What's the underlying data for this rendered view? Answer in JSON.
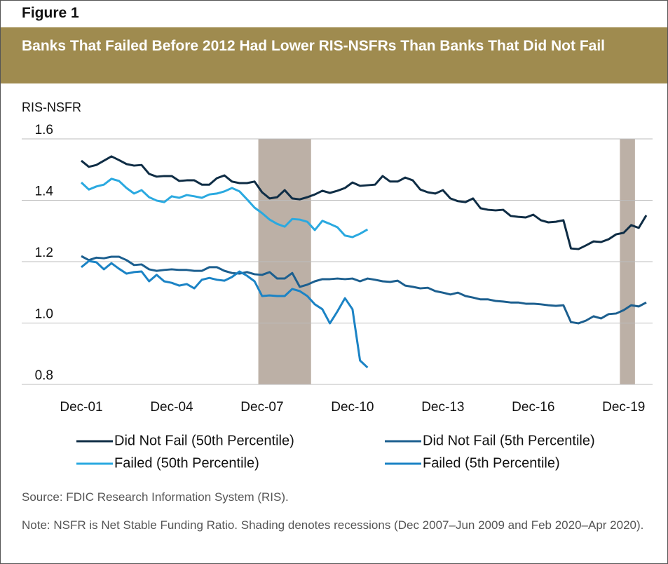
{
  "chart_data": {
    "type": "line",
    "figure_label": "Figure 1",
    "title": "Banks That Failed Before 2012 Had Lower RIS-NSFRs Than Banks That Did Not Fail",
    "y_label": "RIS-NSFR",
    "x": [
      "Dec-01",
      "Mar-02",
      "Jun-02",
      "Sep-02",
      "Dec-02",
      "Mar-03",
      "Jun-03",
      "Sep-03",
      "Dec-03",
      "Mar-04",
      "Jun-04",
      "Sep-04",
      "Dec-04",
      "Mar-05",
      "Jun-05",
      "Sep-05",
      "Dec-05",
      "Mar-06",
      "Jun-06",
      "Sep-06",
      "Dec-06",
      "Mar-07",
      "Jun-07",
      "Sep-07",
      "Dec-07",
      "Mar-08",
      "Jun-08",
      "Sep-08",
      "Dec-08",
      "Mar-09",
      "Jun-09",
      "Sep-09",
      "Dec-09",
      "Mar-10",
      "Jun-10",
      "Sep-10",
      "Dec-10",
      "Mar-11",
      "Jun-11",
      "Sep-11",
      "Dec-11",
      "Mar-12",
      "Jun-12",
      "Sep-12",
      "Dec-12",
      "Mar-13",
      "Jun-13",
      "Sep-13",
      "Dec-13",
      "Mar-14",
      "Jun-14",
      "Sep-14",
      "Dec-14",
      "Mar-15",
      "Jun-15",
      "Sep-15",
      "Dec-15",
      "Mar-16",
      "Jun-16",
      "Sep-16",
      "Dec-16",
      "Mar-17",
      "Jun-17",
      "Sep-17",
      "Dec-17",
      "Mar-18",
      "Jun-18",
      "Sep-18",
      "Dec-18",
      "Mar-19",
      "Jun-19",
      "Sep-19",
      "Dec-19",
      "Mar-20",
      "Jun-20",
      "Sep-20"
    ],
    "xticks": [
      "Dec-01",
      "Dec-04",
      "Dec-07",
      "Dec-10",
      "Dec-13",
      "Dec-16",
      "Dec-19"
    ],
    "ylim": [
      0.8,
      1.6
    ],
    "yticks": [
      0.8,
      {
        "value": 1,
        "label": "1.0"
      },
      1.2,
      1.4,
      1.6
    ],
    "grid": true,
    "recessions": [
      {
        "start": "Dec-07",
        "end": "Jun-09"
      },
      {
        "start": "Dec-19",
        "end": "Mar-20"
      }
    ],
    "recession_color": "#bcb0a6",
    "series": [
      {
        "name": "Did Not Fail (50th Percentile)",
        "color": "#0f2d45",
        "values": [
          1.529,
          1.509,
          1.515,
          1.529,
          1.543,
          1.531,
          1.518,
          1.513,
          1.515,
          1.486,
          1.477,
          1.479,
          1.479,
          1.463,
          1.465,
          1.465,
          1.451,
          1.451,
          1.472,
          1.481,
          1.461,
          1.456,
          1.456,
          1.461,
          1.426,
          1.406,
          1.41,
          1.433,
          1.406,
          1.403,
          1.41,
          1.419,
          1.431,
          1.424,
          1.431,
          1.44,
          1.458,
          1.447,
          1.449,
          1.451,
          1.479,
          1.461,
          1.461,
          1.474,
          1.465,
          1.435,
          1.426,
          1.422,
          1.433,
          1.406,
          1.397,
          1.394,
          1.406,
          1.374,
          1.369,
          1.367,
          1.369,
          1.349,
          1.346,
          1.344,
          1.353,
          1.335,
          1.328,
          1.33,
          1.335,
          1.243,
          1.241,
          1.253,
          1.266,
          1.264,
          1.273,
          1.289,
          1.294,
          1.319,
          1.31,
          1.351
        ]
      },
      {
        "name": "Did Not Fail (5th Percentile)",
        "color": "#1c5f8f",
        "values": [
          1.218,
          1.205,
          1.213,
          1.211,
          1.216,
          1.216,
          1.205,
          1.189,
          1.191,
          1.175,
          1.17,
          1.173,
          1.175,
          1.173,
          1.173,
          1.17,
          1.17,
          1.182,
          1.182,
          1.17,
          1.163,
          1.161,
          1.166,
          1.159,
          1.157,
          1.166,
          1.145,
          1.145,
          1.163,
          1.118,
          1.125,
          1.136,
          1.143,
          1.143,
          1.145,
          1.143,
          1.145,
          1.136,
          1.145,
          1.141,
          1.136,
          1.134,
          1.138,
          1.122,
          1.118,
          1.113,
          1.115,
          1.104,
          1.099,
          1.093,
          1.099,
          1.088,
          1.083,
          1.077,
          1.077,
          1.072,
          1.07,
          1.067,
          1.067,
          1.063,
          1.063,
          1.061,
          1.058,
          1.056,
          1.058,
          1.003,
          0.999,
          1.008,
          1.022,
          1.015,
          1.029,
          1.031,
          1.042,
          1.058,
          1.054,
          1.067
        ]
      },
      {
        "name": "Failed (50th Percentile)",
        "color": "#2aa9e0",
        "values": [
          1.458,
          1.435,
          1.445,
          1.451,
          1.47,
          1.463,
          1.44,
          1.422,
          1.433,
          1.41,
          1.399,
          1.394,
          1.413,
          1.408,
          1.417,
          1.413,
          1.408,
          1.419,
          1.422,
          1.429,
          1.44,
          1.429,
          1.403,
          1.376,
          1.358,
          1.337,
          1.323,
          1.314,
          1.339,
          1.337,
          1.33,
          1.303,
          1.333,
          1.323,
          1.312,
          1.285,
          1.28,
          1.291,
          1.305,
          null,
          null,
          null,
          null,
          null,
          null,
          null,
          null,
          null,
          null,
          null,
          null,
          null,
          null,
          null,
          null,
          null,
          null,
          null,
          null,
          null,
          null,
          null,
          null,
          null,
          null,
          null,
          null,
          null,
          null,
          null,
          null,
          null,
          null,
          null,
          null,
          null
        ]
      },
      {
        "name": "Failed (5th Percentile)",
        "color": "#1b83c5",
        "values": [
          1.182,
          1.202,
          1.198,
          1.175,
          1.195,
          1.177,
          1.161,
          1.166,
          1.168,
          1.136,
          1.157,
          1.136,
          1.131,
          1.122,
          1.127,
          1.113,
          1.141,
          1.147,
          1.141,
          1.138,
          1.15,
          1.168,
          1.154,
          1.136,
          1.088,
          1.09,
          1.088,
          1.088,
          1.111,
          1.104,
          1.088,
          1.061,
          1.045,
          0.999,
          1.038,
          1.081,
          1.045,
          0.878,
          0.855,
          null,
          null,
          null,
          null,
          null,
          null,
          null,
          null,
          null,
          null,
          null,
          null,
          null,
          null,
          null,
          null,
          null,
          null,
          null,
          null,
          null,
          null,
          null,
          null,
          null,
          null,
          null,
          null,
          null,
          null,
          null,
          null,
          null,
          null,
          null,
          null,
          null
        ]
      }
    ],
    "source": "Source: FDIC Research Information System (RIS).",
    "note": "Note: NSFR is Net Stable Funding Ratio. Shading denotes recessions (Dec 2007–Jun 2009 and Feb 2020–Apr 2020)."
  }
}
